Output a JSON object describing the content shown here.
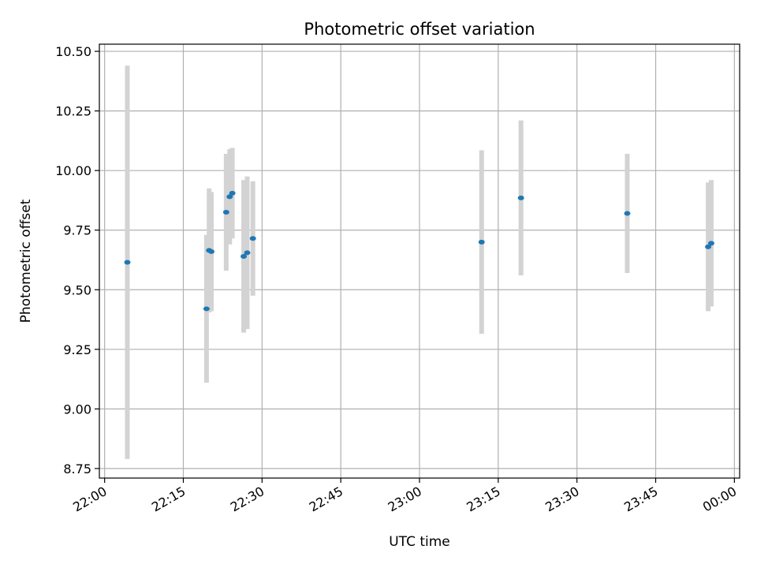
{
  "chart_data": {
    "type": "scatter",
    "title": "Photometric offset variation",
    "xlabel": "UTC time",
    "ylabel": "Photometric offset",
    "x_axis": "time (HH:MM, UTC)",
    "xlim": [
      "21:59",
      "00:01"
    ],
    "ylim": [
      8.71,
      10.53
    ],
    "x_ticks": [
      "22:00",
      "22:15",
      "22:30",
      "22:45",
      "23:00",
      "23:15",
      "23:30",
      "23:45",
      "00:00"
    ],
    "y_ticks": [
      "8.75",
      "9.00",
      "9.25",
      "9.50",
      "9.75",
      "10.00",
      "10.25",
      "10.50"
    ],
    "grid": true,
    "marker_color": "#1f77b4",
    "errorbar_color": "#d3d3d3",
    "points": [
      {
        "t": "22:04:20",
        "y": 9.615,
        "err": 0.825
      },
      {
        "t": "22:19:25",
        "y": 9.42,
        "err": 0.31
      },
      {
        "t": "22:19:55",
        "y": 9.665,
        "err": 0.26
      },
      {
        "t": "22:20:20",
        "y": 9.66,
        "err": 0.25
      },
      {
        "t": "22:23:10",
        "y": 9.825,
        "err": 0.245
      },
      {
        "t": "22:23:50",
        "y": 9.89,
        "err": 0.2
      },
      {
        "t": "22:24:20",
        "y": 9.905,
        "err": 0.19
      },
      {
        "t": "22:26:30",
        "y": 9.64,
        "err": 0.32
      },
      {
        "t": "22:27:10",
        "y": 9.655,
        "err": 0.32
      },
      {
        "t": "22:28:15",
        "y": 9.715,
        "err": 0.24
      },
      {
        "t": "23:11:50",
        "y": 9.7,
        "err": 0.385
      },
      {
        "t": "23:19:20",
        "y": 9.885,
        "err": 0.325
      },
      {
        "t": "23:39:35",
        "y": 9.82,
        "err": 0.25
      },
      {
        "t": "23:55:00",
        "y": 9.68,
        "err": 0.27
      },
      {
        "t": "23:55:35",
        "y": 9.695,
        "err": 0.265
      }
    ]
  }
}
